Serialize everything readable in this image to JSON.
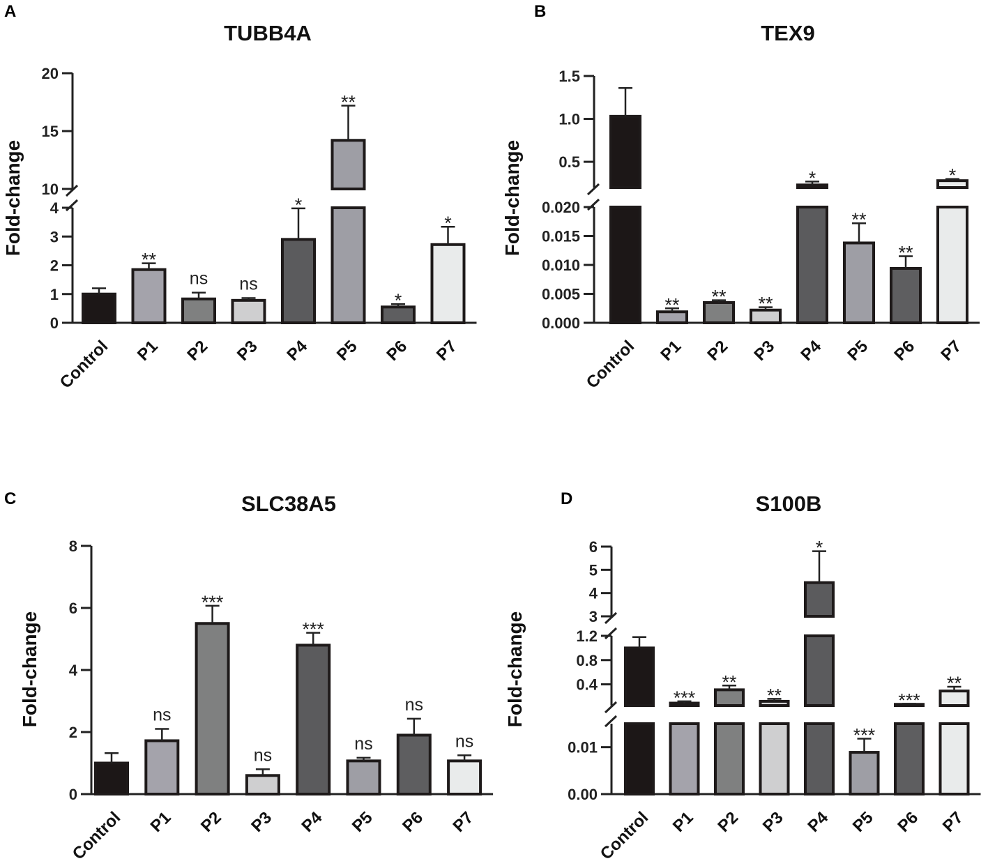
{
  "chart_data": [
    {
      "id": "A",
      "panel": "A",
      "type": "bar",
      "title": "TUBB4A",
      "ylabel": "Fold-change",
      "xlabel": "",
      "categories": [
        "Control",
        "P1",
        "P2",
        "P3",
        "P4",
        "P5",
        "P6",
        "P7"
      ],
      "values": [
        1.0,
        1.85,
        0.83,
        0.78,
        2.9,
        14.2,
        0.55,
        2.72
      ],
      "errors": [
        0.2,
        0.22,
        0.22,
        0.08,
        1.08,
        3.0,
        0.1,
        0.62
      ],
      "significance": [
        "",
        "**",
        "ns",
        "ns",
        "*",
        "**",
        "*",
        "*"
      ],
      "colors": [
        "#1c1717",
        "#a4a3ab",
        "#7f8080",
        "#cfcfd0",
        "#5b5b5d",
        "#9e9ea5",
        "#5e5e60",
        "#e9ebeb"
      ],
      "axis_breaks": true,
      "segments": [
        {
          "range": [
            0,
            4
          ],
          "ticks": [
            0,
            1,
            2,
            3,
            4
          ],
          "tick_labels": [
            "0",
            "1",
            "2",
            "3",
            "4"
          ]
        },
        {
          "range": [
            10,
            20
          ],
          "ticks": [
            10,
            15,
            20
          ],
          "tick_labels": [
            "10",
            "15",
            "20"
          ]
        }
      ]
    },
    {
      "id": "B",
      "panel": "B",
      "type": "bar",
      "title": "TEX9",
      "ylabel": "Fold-change",
      "xlabel": "",
      "categories": [
        "Control",
        "P1",
        "P2",
        "P3",
        "P4",
        "P5",
        "P6",
        "P7"
      ],
      "values": [
        1.03,
        0.0019,
        0.0035,
        0.0022,
        0.23,
        0.0138,
        0.0094,
        0.28
      ],
      "errors": [
        0.33,
        0.0006,
        0.0004,
        0.0005,
        0.04,
        0.0034,
        0.0021,
        0.02
      ],
      "significance": [
        "",
        "**",
        "**",
        "**",
        "*",
        "**",
        "**",
        "*"
      ],
      "colors": [
        "#1c1717",
        "#a4a3ab",
        "#7f8080",
        "#cfcfd0",
        "#5b5b5d",
        "#9e9ea5",
        "#5e5e60",
        "#e9ebeb"
      ],
      "axis_breaks": true,
      "segments": [
        {
          "range": [
            0,
            0.02
          ],
          "ticks": [
            0,
            0.005,
            0.01,
            0.015,
            0.02
          ],
          "tick_labels": [
            "0.000",
            "0.005",
            "0.010",
            "0.015",
            "0.020"
          ]
        },
        {
          "range": [
            0.2,
            1.5
          ],
          "ticks": [
            0.5,
            1.0,
            1.5
          ],
          "tick_labels": [
            "0.5",
            "1.0",
            "1.5"
          ]
        }
      ]
    },
    {
      "id": "C",
      "panel": "C",
      "type": "bar",
      "title": "SLC38A5",
      "ylabel": "Fold-change",
      "xlabel": "",
      "categories": [
        "Control",
        "P1",
        "P2",
        "P3",
        "P4",
        "P5",
        "P6",
        "P7"
      ],
      "values": [
        1.0,
        1.72,
        5.5,
        0.6,
        4.8,
        1.07,
        1.9,
        1.07
      ],
      "errors": [
        0.32,
        0.38,
        0.57,
        0.2,
        0.4,
        0.1,
        0.53,
        0.18
      ],
      "significance": [
        "",
        "ns",
        "***",
        "ns",
        "***",
        "ns",
        "ns",
        "ns"
      ],
      "colors": [
        "#1c1717",
        "#a4a3ab",
        "#7f8080",
        "#cfcfd0",
        "#5b5b5d",
        "#9e9ea5",
        "#5e5e60",
        "#e9ebeb"
      ],
      "axis_breaks": false,
      "segments": [
        {
          "range": [
            0,
            8
          ],
          "ticks": [
            0,
            2,
            4,
            6,
            8
          ],
          "tick_labels": [
            "0",
            "2",
            "4",
            "6",
            "8"
          ]
        }
      ]
    },
    {
      "id": "D",
      "panel": "D",
      "type": "bar",
      "title": "S100B",
      "ylabel": "Fold-change",
      "xlabel": "",
      "categories": [
        "Control",
        "P1",
        "P2",
        "P3",
        "P4",
        "P5",
        "P6",
        "P7"
      ],
      "values": [
        1.0,
        0.09,
        0.31,
        0.12,
        4.45,
        0.0089,
        0.07,
        0.29
      ],
      "errors": [
        0.18,
        0.03,
        0.07,
        0.04,
        1.35,
        0.0029,
        0.01,
        0.07
      ],
      "significance": [
        "",
        "***",
        "**",
        "**",
        "*",
        "***",
        "***",
        "**"
      ],
      "colors": [
        "#1c1717",
        "#a4a3ab",
        "#7f8080",
        "#cfcfd0",
        "#5b5b5d",
        "#9e9ea5",
        "#5e5e60",
        "#e9ebeb"
      ],
      "axis_breaks": true,
      "segments": [
        {
          "range": [
            0,
            0.015
          ],
          "ticks": [
            0,
            0.01
          ],
          "tick_labels": [
            "0.00",
            "0.01"
          ]
        },
        {
          "range": [
            0.05,
            1.2
          ],
          "ticks": [
            0.4,
            0.8,
            1.2
          ],
          "tick_labels": [
            "0.4",
            "0.8",
            "1.2"
          ]
        },
        {
          "range": [
            3,
            6
          ],
          "ticks": [
            3,
            4,
            5,
            6
          ],
          "tick_labels": [
            "3",
            "4",
            "5",
            "6"
          ]
        }
      ]
    }
  ]
}
